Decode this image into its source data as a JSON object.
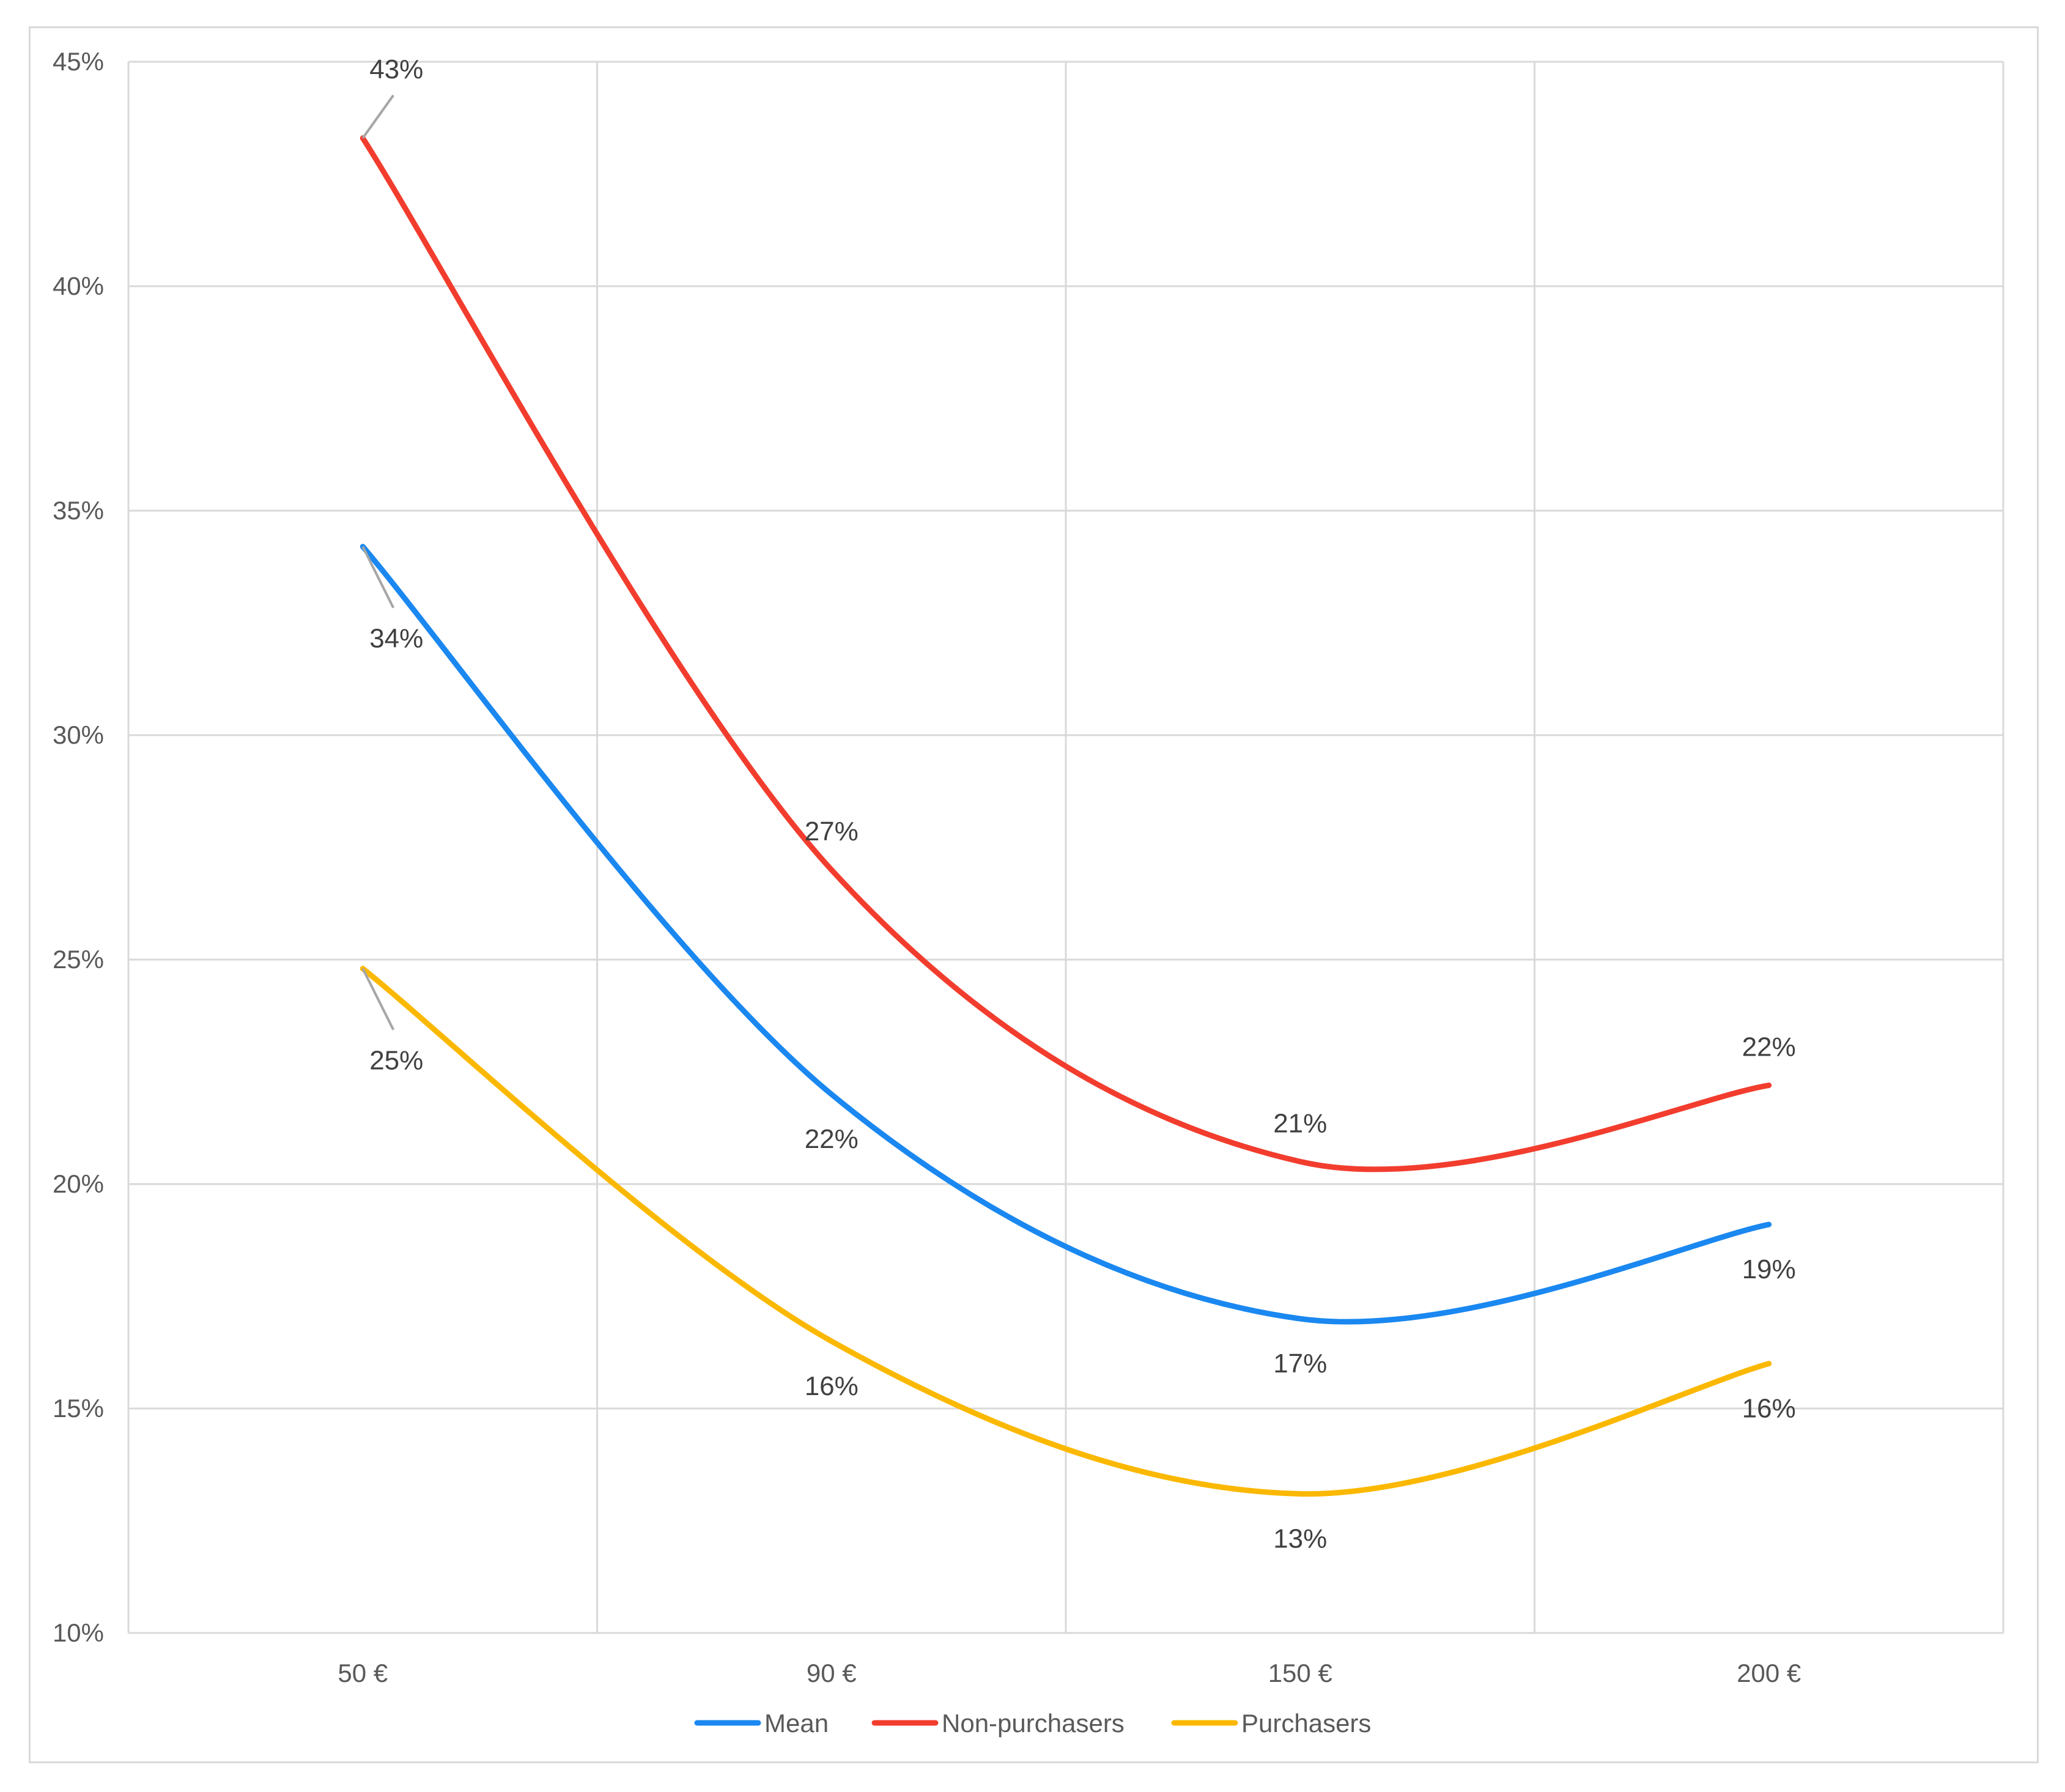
{
  "chart_data": {
    "type": "line",
    "title": "",
    "xlabel": "",
    "ylabel": "",
    "categories": [
      "50 €",
      "90 €",
      "150 €",
      "200 €"
    ],
    "ylim": [
      0.1,
      0.45
    ],
    "y_ticks": [
      {
        "value": 0.1,
        "label": "10%"
      },
      {
        "value": 0.15,
        "label": "15%"
      },
      {
        "value": 0.2,
        "label": "20%"
      },
      {
        "value": 0.25,
        "label": "25%"
      },
      {
        "value": 0.3,
        "label": "30%"
      },
      {
        "value": 0.35,
        "label": "35%"
      },
      {
        "value": 0.4,
        "label": "40%"
      },
      {
        "value": 0.45,
        "label": "45%"
      }
    ],
    "grid": true,
    "smooth": true,
    "legend_position": "bottom",
    "series": [
      {
        "name": "Mean",
        "color": "#1a88f0",
        "values": [
          0.342,
          0.22,
          0.17,
          0.191
        ],
        "labels": [
          "34%",
          "22%",
          "17%",
          "19%"
        ],
        "label_side": "below"
      },
      {
        "name": "Non-purchasers",
        "color": "#f23d2e",
        "values": [
          0.433,
          0.27,
          0.205,
          0.222
        ],
        "labels": [
          "43%",
          "27%",
          "21%",
          "22%"
        ],
        "label_side": "above"
      },
      {
        "name": "Purchasers",
        "color": "#fbb800",
        "values": [
          0.248,
          0.165,
          0.131,
          0.16
        ],
        "labels": [
          "25%",
          "16%",
          "13%",
          "16%"
        ],
        "label_side": "below"
      }
    ]
  }
}
